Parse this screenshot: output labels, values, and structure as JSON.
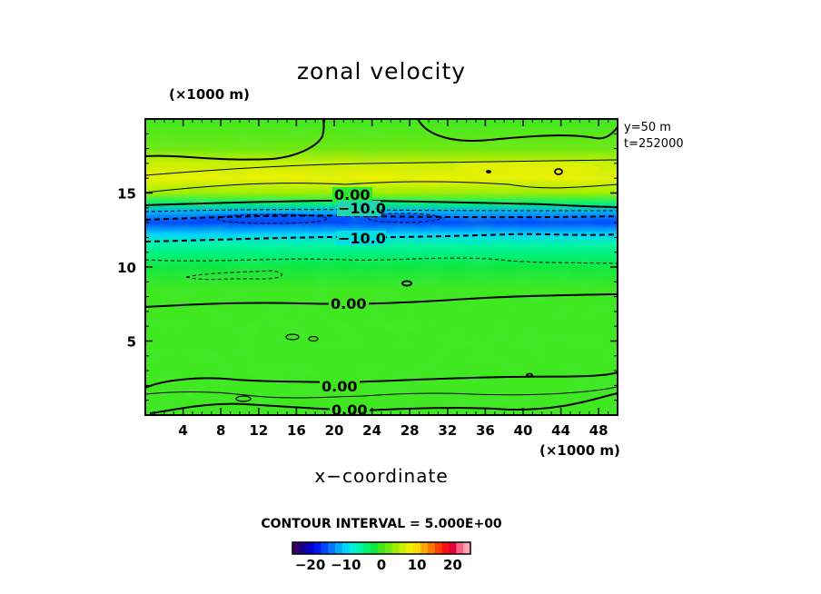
{
  "chart_data": {
    "type": "heatmap",
    "title": "zonal velocity",
    "xlabel": "x−coordinate",
    "x_unit": "(×1000 m)",
    "y_unit": "(×1000 m)",
    "xlim": [
      0,
      50
    ],
    "ylim": [
      0,
      20
    ],
    "x_ticks": [
      4,
      8,
      12,
      16,
      20,
      24,
      28,
      32,
      36,
      40,
      44,
      48
    ],
    "y_ticks": [
      5,
      10,
      15
    ],
    "x_tick_labels": [
      "4",
      "8",
      "12",
      "16",
      "20",
      "24",
      "28",
      "32",
      "36",
      "40",
      "44",
      "48"
    ],
    "y_tick_labels": [
      "5",
      "10",
      "15"
    ],
    "annotations": [
      "y=50  m",
      "t=252000"
    ],
    "contour_interval_text": "CONTOUR INTERVAL = 5.000E+00",
    "contour_labels": [
      "0.00",
      "−10.0",
      "−10.0",
      "0.00",
      "0.00",
      "0.00"
    ],
    "colorbar": {
      "vmin": -25,
      "vmax": 25,
      "tick_values": [
        -20,
        -10,
        0,
        10,
        20
      ],
      "tick_labels": [
        "−20",
        "−10",
        "0",
        "10",
        "20"
      ],
      "colors": [
        "#3a006a",
        "#18008c",
        "#0000c8",
        "#0018f0",
        "#0048ff",
        "#0078ff",
        "#00a8ff",
        "#00d4ff",
        "#00f0e0",
        "#00f4a8",
        "#00f070",
        "#10e840",
        "#40e820",
        "#70e810",
        "#a0ee00",
        "#ccf000",
        "#eef000",
        "#ffd800",
        "#ffa800",
        "#ff7800",
        "#ff4000",
        "#ff1010",
        "#e00040",
        "#ff6080",
        "#ffa0b0"
      ]
    },
    "field_profile": {
      "y": [
        0,
        1,
        2,
        3,
        5,
        7,
        8.5,
        10,
        10.7,
        11.5,
        12.2,
        13,
        13.7,
        14.3,
        15,
        16,
        17,
        18,
        20
      ],
      "u": [
        0,
        0,
        0,
        0,
        0,
        0,
        0,
        -2,
        -4,
        -7,
        -10,
        -16,
        -13,
        -4,
        4,
        7,
        5,
        2,
        0
      ]
    }
  }
}
